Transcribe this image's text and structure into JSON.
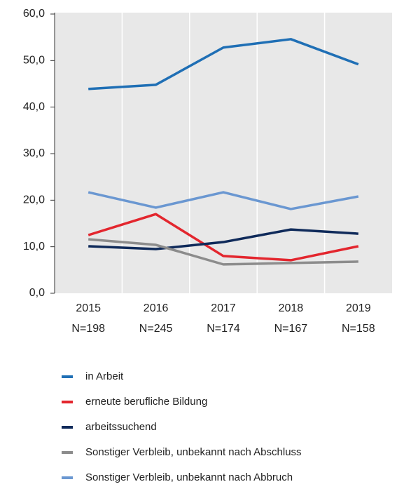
{
  "chart_data": {
    "type": "line",
    "categories": [
      [
        "2015",
        "N=198"
      ],
      [
        "2016",
        "N=245"
      ],
      [
        "2017",
        "N=174"
      ],
      [
        "2018",
        "N=167"
      ],
      [
        "2019",
        "N=158"
      ]
    ],
    "series": [
      {
        "name": "in Arbeit",
        "color": "#1f6fb5",
        "values": [
          43.9,
          44.8,
          52.8,
          54.6,
          49.2
        ]
      },
      {
        "name": "erneute berufliche Bildung",
        "color": "#e3262e",
        "values": [
          12.5,
          17.0,
          8.0,
          7.1,
          10.1
        ]
      },
      {
        "name": "arbeitssuchend",
        "color": "#0f2a5a",
        "values": [
          10.1,
          9.5,
          11.0,
          13.7,
          12.8
        ]
      },
      {
        "name": "Sonstiger Verbleib, unbekannt nach Abschluss",
        "color": "#8c8c8c",
        "values": [
          11.6,
          10.4,
          6.2,
          6.5,
          6.8
        ]
      },
      {
        "name": "Sonstiger Verbleib, unbekannt nach Abbruch",
        "color": "#6a97d1",
        "values": [
          21.7,
          18.4,
          21.7,
          18.1,
          20.8
        ]
      }
    ],
    "ylim": [
      0,
      60
    ],
    "yticks": [
      {
        "value": 0,
        "label": "0,0"
      },
      {
        "value": 10,
        "label": "10,0"
      },
      {
        "value": 20,
        "label": "20,0"
      },
      {
        "value": 30,
        "label": "30,0"
      },
      {
        "value": 40,
        "label": "40,0"
      },
      {
        "value": 50,
        "label": "50,0"
      },
      {
        "value": 60,
        "label": "60,0"
      }
    ],
    "grid": true,
    "legend": "bottom"
  }
}
